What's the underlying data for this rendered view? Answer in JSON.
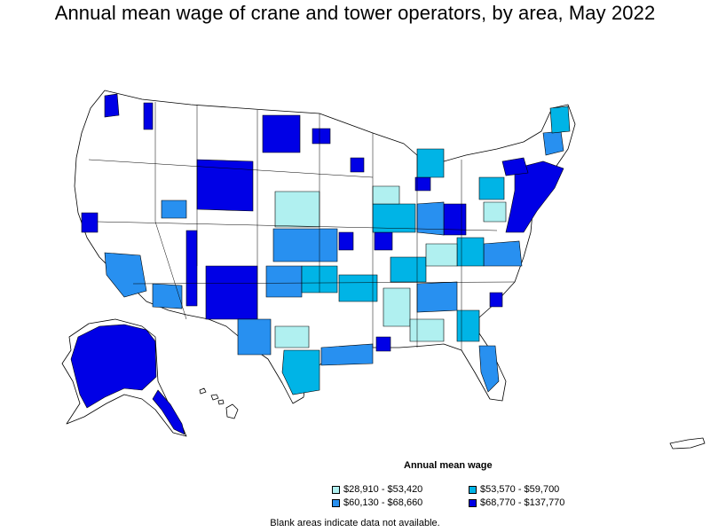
{
  "title": "Annual mean wage of crane and tower operators, by area, May 2022",
  "legend": {
    "title": "Annual mean wage",
    "items": [
      {
        "label": "$28,910 - $53,420",
        "color": "#b0f0f0"
      },
      {
        "label": "$53,570 - $59,700",
        "color": "#00b4e6"
      },
      {
        "label": "$60,130 - $68,660",
        "color": "#2890f0"
      },
      {
        "label": "$68,770 - $137,770",
        "color": "#0000e6"
      }
    ]
  },
  "note": "Blank areas indicate data not available.",
  "colors": {
    "outline": "#000000",
    "blank": "#ffffff"
  }
}
